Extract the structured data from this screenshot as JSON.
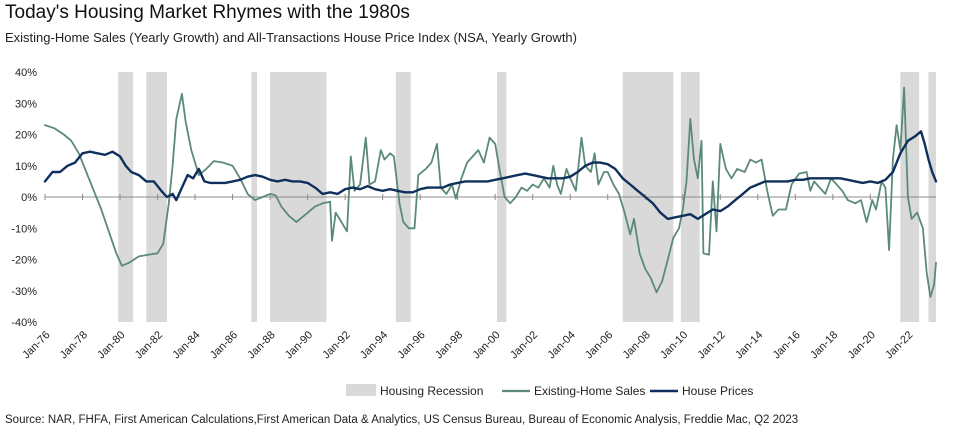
{
  "chart_data": {
    "type": "line",
    "title": "Today's Housing Market Rhymes with the 1980s",
    "subtitle": "Existing-Home Sales (Yearly Growth) and All-Transactions House Price Index (NSA, Yearly Growth)",
    "source": "Source: NAR, FHFA, First American Calculations,First American Data & Analytics, US Census Bureau, Bureau of Economic Analysis, Freddie Mac, Q2 2023",
    "x_range": [
      1976.0,
      2023.5
    ],
    "ylim": [
      -40,
      40
    ],
    "y_ticks": [
      40,
      30,
      20,
      10,
      0,
      -10,
      -20,
      -30,
      -40
    ],
    "y_tick_labels": [
      "40%",
      "30%",
      "20%",
      "10%",
      "0%",
      "-10%",
      "-20%",
      "-30%",
      "-40%"
    ],
    "x_ticks": [
      1976,
      1978,
      1980,
      1982,
      1984,
      1986,
      1988,
      1990,
      1992,
      1994,
      1996,
      1998,
      2000,
      2002,
      2004,
      2006,
      2008,
      2010,
      2012,
      2014,
      2016,
      2018,
      2020,
      2022
    ],
    "x_tick_labels": [
      "Jan-76",
      "Jan-78",
      "Jan-80",
      "Jan-82",
      "Jan-84",
      "Jan-86",
      "Jan-88",
      "Jan-90",
      "Jan-92",
      "Jan-94",
      "Jan-96",
      "Jan-98",
      "Jan-00",
      "Jan-02",
      "Jan-04",
      "Jan-06",
      "Jan-08",
      "Jan-10",
      "Jan-12",
      "Jan-14",
      "Jan-16",
      "Jan-18",
      "Jan-20",
      "Jan-22"
    ],
    "recessions": [
      [
        1979.9,
        1980.7
      ],
      [
        1981.4,
        1982.5
      ],
      [
        1987.0,
        1987.3
      ],
      [
        1988.0,
        1991.0
      ],
      [
        1994.7,
        1995.5
      ],
      [
        2000.1,
        2000.6
      ],
      [
        2006.8,
        2009.5
      ],
      [
        2009.9,
        2010.9
      ],
      [
        2021.6,
        2022.6
      ],
      [
        2023.1,
        2023.5
      ]
    ],
    "series": [
      {
        "name": "Existing-Home Sales",
        "color": "#5b8a78",
        "points": [
          [
            1976.0,
            23
          ],
          [
            1976.5,
            22
          ],
          [
            1977.0,
            20
          ],
          [
            1977.4,
            18
          ],
          [
            1977.8,
            14
          ],
          [
            1978.2,
            8
          ],
          [
            1978.6,
            2
          ],
          [
            1979.0,
            -4
          ],
          [
            1979.4,
            -11
          ],
          [
            1979.8,
            -18
          ],
          [
            1980.1,
            -22
          ],
          [
            1980.5,
            -21
          ],
          [
            1981.0,
            -19
          ],
          [
            1981.5,
            -18.5
          ],
          [
            1982.0,
            -18
          ],
          [
            1982.3,
            -15
          ],
          [
            1982.6,
            -2
          ],
          [
            1982.8,
            10
          ],
          [
            1983.0,
            25
          ],
          [
            1983.3,
            33
          ],
          [
            1983.5,
            24
          ],
          [
            1983.8,
            15
          ],
          [
            1984.2,
            7
          ],
          [
            1984.6,
            9
          ],
          [
            1985.0,
            11.5
          ],
          [
            1985.5,
            11
          ],
          [
            1986.0,
            10
          ],
          [
            1986.4,
            6
          ],
          [
            1986.8,
            1
          ],
          [
            1987.2,
            -1
          ],
          [
            1987.6,
            0
          ],
          [
            1988.0,
            1
          ],
          [
            1988.3,
            0.5
          ],
          [
            1988.6,
            -3
          ],
          [
            1989.0,
            -6
          ],
          [
            1989.4,
            -8
          ],
          [
            1989.8,
            -6
          ],
          [
            1990.4,
            -3
          ],
          [
            1990.8,
            -2
          ],
          [
            1991.2,
            -1.5
          ],
          [
            1991.3,
            -14
          ],
          [
            1991.5,
            -5
          ],
          [
            1991.8,
            -8
          ],
          [
            1992.1,
            -11
          ],
          [
            1992.3,
            13
          ],
          [
            1992.5,
            2
          ],
          [
            1992.8,
            4
          ],
          [
            1993.1,
            19
          ],
          [
            1993.3,
            4
          ],
          [
            1993.6,
            5
          ],
          [
            1993.9,
            15
          ],
          [
            1994.1,
            12
          ],
          [
            1994.4,
            14
          ],
          [
            1994.6,
            13
          ],
          [
            1994.9,
            -2
          ],
          [
            1995.1,
            -8
          ],
          [
            1995.4,
            -10
          ],
          [
            1995.7,
            -10
          ],
          [
            1995.9,
            7
          ],
          [
            1996.3,
            9
          ],
          [
            1996.6,
            11
          ],
          [
            1996.9,
            17
          ],
          [
            1997.1,
            3
          ],
          [
            1997.4,
            1
          ],
          [
            1997.7,
            4
          ],
          [
            1997.9,
            -0.5
          ],
          [
            1998.2,
            6
          ],
          [
            1998.5,
            11
          ],
          [
            1998.8,
            13
          ],
          [
            1999.1,
            15
          ],
          [
            1999.4,
            11
          ],
          [
            1999.7,
            19
          ],
          [
            2000.0,
            17
          ],
          [
            2000.2,
            10
          ],
          [
            2000.5,
            0
          ],
          [
            2000.8,
            -2
          ],
          [
            2001.1,
            0
          ],
          [
            2001.4,
            3
          ],
          [
            2001.7,
            2
          ],
          [
            2002.0,
            4
          ],
          [
            2002.3,
            3
          ],
          [
            2002.6,
            6
          ],
          [
            2002.9,
            3
          ],
          [
            2003.1,
            10
          ],
          [
            2003.3,
            4
          ],
          [
            2003.5,
            1
          ],
          [
            2003.8,
            9
          ],
          [
            2004.0,
            6
          ],
          [
            2004.3,
            2
          ],
          [
            2004.6,
            19
          ],
          [
            2004.8,
            10
          ],
          [
            2005.1,
            8
          ],
          [
            2005.3,
            14
          ],
          [
            2005.5,
            4
          ],
          [
            2005.8,
            8
          ],
          [
            2006.0,
            8
          ],
          [
            2006.3,
            4
          ],
          [
            2006.6,
            1
          ],
          [
            2006.9,
            -5
          ],
          [
            2007.2,
            -12
          ],
          [
            2007.4,
            -7
          ],
          [
            2007.7,
            -18
          ],
          [
            2008.0,
            -23
          ],
          [
            2008.3,
            -26
          ],
          [
            2008.6,
            -30.5
          ],
          [
            2008.9,
            -27
          ],
          [
            2009.2,
            -20
          ],
          [
            2009.5,
            -13
          ],
          [
            2009.8,
            -10
          ],
          [
            2010.0,
            -4
          ],
          [
            2010.2,
            5
          ],
          [
            2010.4,
            25
          ],
          [
            2010.6,
            12
          ],
          [
            2010.8,
            6
          ],
          [
            2011.0,
            18
          ],
          [
            2011.1,
            -18
          ],
          [
            2011.4,
            -18.5
          ],
          [
            2011.6,
            5
          ],
          [
            2011.8,
            -11
          ],
          [
            2012.0,
            17
          ],
          [
            2012.3,
            9
          ],
          [
            2012.6,
            6
          ],
          [
            2012.9,
            9
          ],
          [
            2013.3,
            8
          ],
          [
            2013.6,
            12
          ],
          [
            2013.9,
            11
          ],
          [
            2014.2,
            12
          ],
          [
            2014.5,
            2
          ],
          [
            2014.8,
            -6
          ],
          [
            2015.1,
            -4
          ],
          [
            2015.5,
            -4
          ],
          [
            2015.8,
            4
          ],
          [
            2016.2,
            7.5
          ],
          [
            2016.6,
            8
          ],
          [
            2016.8,
            2
          ],
          [
            2017.0,
            5
          ],
          [
            2017.3,
            3
          ],
          [
            2017.6,
            1
          ],
          [
            2017.9,
            6
          ],
          [
            2018.2,
            4
          ],
          [
            2018.5,
            2
          ],
          [
            2018.8,
            -1
          ],
          [
            2019.2,
            -2
          ],
          [
            2019.5,
            -1
          ],
          [
            2019.8,
            -8
          ],
          [
            2020.1,
            -1
          ],
          [
            2020.3,
            -4
          ],
          [
            2020.6,
            5
          ],
          [
            2020.8,
            3
          ],
          [
            2021.0,
            -17
          ],
          [
            2021.2,
            12
          ],
          [
            2021.4,
            23
          ],
          [
            2021.6,
            15
          ],
          [
            2021.8,
            35
          ],
          [
            2022.0,
            0
          ],
          [
            2022.2,
            -7
          ],
          [
            2022.5,
            -5
          ],
          [
            2022.8,
            -10
          ],
          [
            2023.0,
            -24
          ],
          [
            2023.2,
            -32
          ],
          [
            2023.4,
            -28
          ],
          [
            2023.5,
            -21
          ]
        ]
      },
      {
        "name": "House Prices",
        "color": "#0f2f5c",
        "points": [
          [
            1976.0,
            5
          ],
          [
            1976.4,
            8
          ],
          [
            1976.8,
            8
          ],
          [
            1977.2,
            10
          ],
          [
            1977.6,
            11
          ],
          [
            1978.0,
            14
          ],
          [
            1978.4,
            14.5
          ],
          [
            1978.8,
            14
          ],
          [
            1979.2,
            13.5
          ],
          [
            1979.6,
            14.5
          ],
          [
            1980.0,
            13
          ],
          [
            1980.3,
            10
          ],
          [
            1980.6,
            8
          ],
          [
            1981.0,
            7
          ],
          [
            1981.4,
            5
          ],
          [
            1981.8,
            5
          ],
          [
            1982.2,
            2
          ],
          [
            1982.5,
            0
          ],
          [
            1982.8,
            1
          ],
          [
            1983.0,
            -1
          ],
          [
            1983.3,
            3
          ],
          [
            1983.6,
            7
          ],
          [
            1983.9,
            6
          ],
          [
            1984.2,
            9
          ],
          [
            1984.5,
            5
          ],
          [
            1984.8,
            4.5
          ],
          [
            1985.2,
            4.5
          ],
          [
            1985.6,
            4.5
          ],
          [
            1986.0,
            5
          ],
          [
            1986.4,
            5.5
          ],
          [
            1986.8,
            6.5
          ],
          [
            1987.2,
            7
          ],
          [
            1987.6,
            6.5
          ],
          [
            1988.0,
            5.5
          ],
          [
            1988.4,
            5
          ],
          [
            1988.8,
            5.5
          ],
          [
            1989.2,
            5
          ],
          [
            1989.6,
            5
          ],
          [
            1990.0,
            4.5
          ],
          [
            1990.4,
            3
          ],
          [
            1990.8,
            1
          ],
          [
            1991.2,
            1.5
          ],
          [
            1991.6,
            1
          ],
          [
            1992.0,
            2.5
          ],
          [
            1992.4,
            3
          ],
          [
            1992.8,
            2.5
          ],
          [
            1993.2,
            3.5
          ],
          [
            1993.6,
            2.5
          ],
          [
            1994.0,
            2
          ],
          [
            1994.4,
            2.5
          ],
          [
            1994.8,
            2
          ],
          [
            1995.2,
            1.5
          ],
          [
            1995.6,
            1.5
          ],
          [
            1996.0,
            2.5
          ],
          [
            1996.4,
            3
          ],
          [
            1996.8,
            3
          ],
          [
            1997.2,
            3
          ],
          [
            1997.6,
            4
          ],
          [
            1998.0,
            4.5
          ],
          [
            1998.4,
            5
          ],
          [
            1998.8,
            5
          ],
          [
            1999.2,
            5
          ],
          [
            1999.6,
            5
          ],
          [
            2000.0,
            5.5
          ],
          [
            2000.4,
            6
          ],
          [
            2000.8,
            6.5
          ],
          [
            2001.2,
            7
          ],
          [
            2001.6,
            7.5
          ],
          [
            2002.0,
            7
          ],
          [
            2002.4,
            6.5
          ],
          [
            2002.8,
            6
          ],
          [
            2003.2,
            6
          ],
          [
            2003.6,
            6
          ],
          [
            2004.0,
            6.5
          ],
          [
            2004.4,
            8
          ],
          [
            2004.8,
            10
          ],
          [
            2005.2,
            11
          ],
          [
            2005.6,
            11
          ],
          [
            2006.0,
            10.5
          ],
          [
            2006.4,
            9
          ],
          [
            2006.8,
            6
          ],
          [
            2007.2,
            4
          ],
          [
            2007.6,
            2
          ],
          [
            2008.0,
            0
          ],
          [
            2008.4,
            -2
          ],
          [
            2008.8,
            -5
          ],
          [
            2009.2,
            -7
          ],
          [
            2009.6,
            -6.5
          ],
          [
            2010.0,
            -6
          ],
          [
            2010.4,
            -5.5
          ],
          [
            2010.8,
            -7
          ],
          [
            2011.2,
            -5.5
          ],
          [
            2011.6,
            -4
          ],
          [
            2012.0,
            -4.5
          ],
          [
            2012.4,
            -3
          ],
          [
            2012.8,
            -1
          ],
          [
            2013.2,
            1
          ],
          [
            2013.6,
            3
          ],
          [
            2014.0,
            4
          ],
          [
            2014.4,
            5
          ],
          [
            2014.8,
            5
          ],
          [
            2015.2,
            5
          ],
          [
            2015.6,
            5
          ],
          [
            2016.0,
            5.5
          ],
          [
            2016.4,
            5.5
          ],
          [
            2016.8,
            6
          ],
          [
            2017.2,
            6
          ],
          [
            2017.6,
            6
          ],
          [
            2018.0,
            6
          ],
          [
            2018.4,
            6
          ],
          [
            2018.8,
            5.5
          ],
          [
            2019.2,
            5
          ],
          [
            2019.6,
            4.5
          ],
          [
            2020.0,
            5
          ],
          [
            2020.4,
            4.5
          ],
          [
            2020.8,
            5.5
          ],
          [
            2021.2,
            8
          ],
          [
            2021.6,
            14
          ],
          [
            2022.0,
            18
          ],
          [
            2022.4,
            19.5
          ],
          [
            2022.7,
            21
          ],
          [
            2022.9,
            17
          ],
          [
            2023.1,
            12
          ],
          [
            2023.3,
            8
          ],
          [
            2023.5,
            5
          ]
        ]
      }
    ],
    "legend": [
      "Housing Recession",
      "Existing-Home Sales",
      "House Prices"
    ],
    "legend_placement": "bottom",
    "recession_color": "#d9d9d9"
  }
}
